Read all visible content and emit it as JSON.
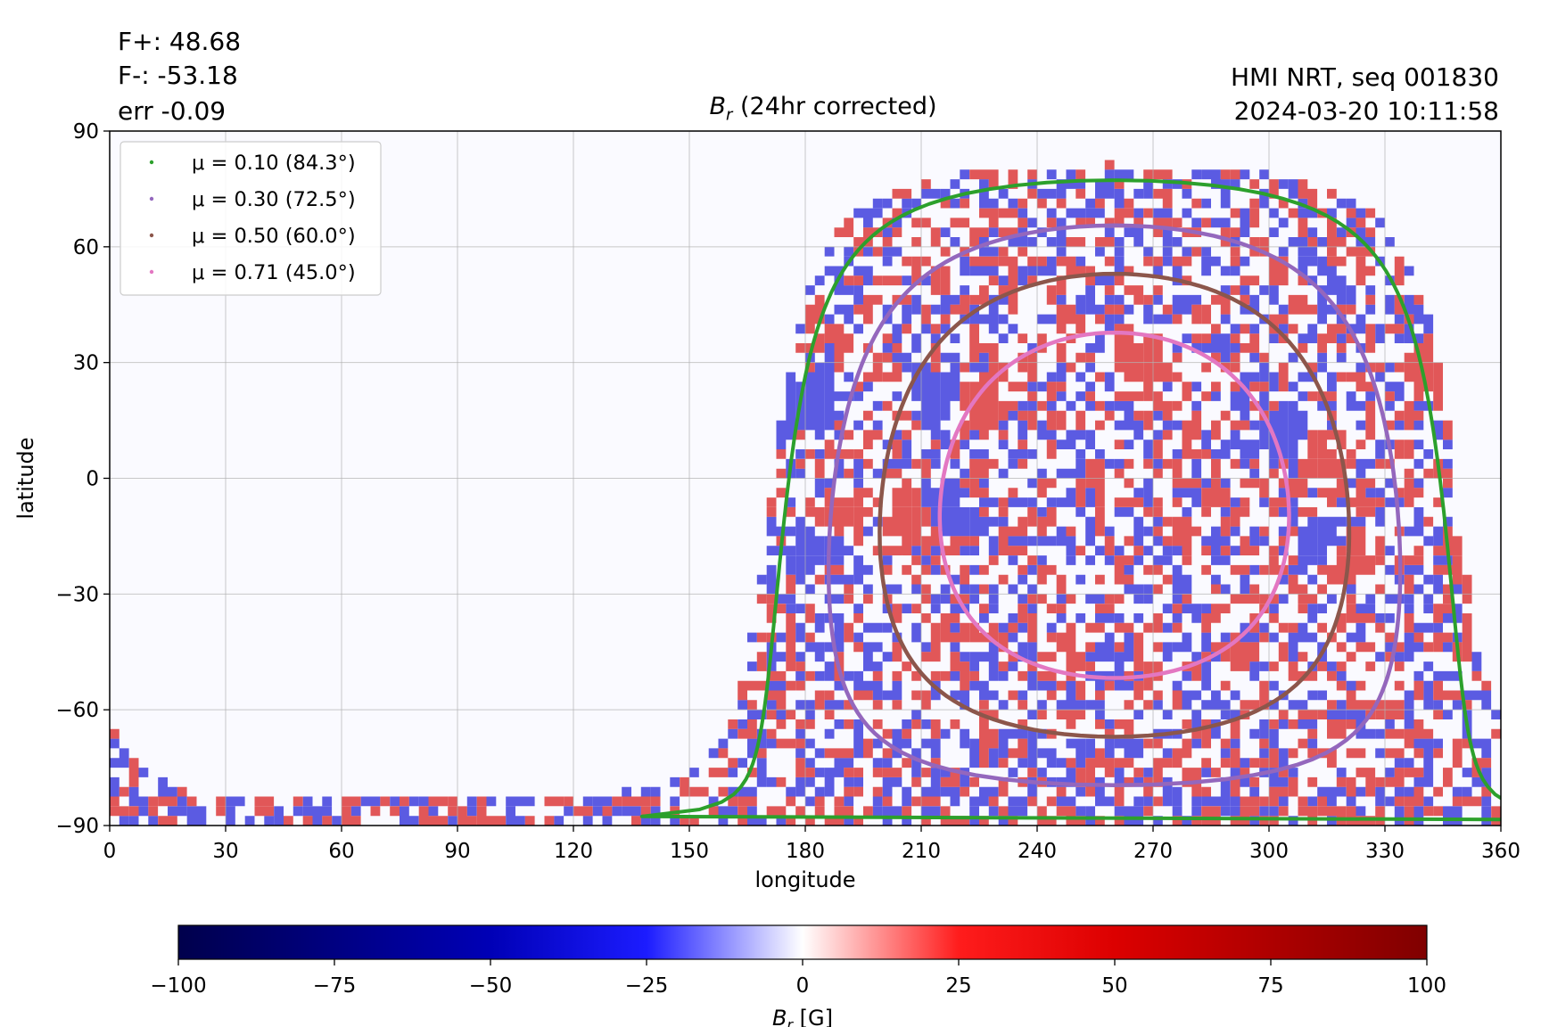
{
  "header": {
    "flux_pos": "F+: 48.68",
    "flux_neg": "F-: -53.18",
    "error": "err -0.09",
    "title_symbol": "B",
    "title_sub": "r",
    "title_rest": " (24hr corrected)",
    "source": "HMI NRT, seq 001830",
    "timestamp": "2024-03-20 10:11:58"
  },
  "chart_data": {
    "type": "heatmap",
    "xlabel": "longitude",
    "ylabel": "latitude",
    "xlim": [
      0,
      360
    ],
    "ylim": [
      -90,
      90
    ],
    "xticks": [
      0,
      30,
      60,
      90,
      120,
      150,
      180,
      210,
      240,
      270,
      300,
      330,
      360
    ],
    "yticks": [
      90,
      60,
      30,
      0,
      -30,
      -60,
      -90
    ],
    "ytick_labels": [
      "90",
      "60",
      "30",
      "0",
      "−30",
      "−60",
      "−90"
    ],
    "grid": true,
    "legend_position": "top-left",
    "disk_center_longitude": 260,
    "disk_center_latitude": -7,
    "series": [
      {
        "name": "μ = 0.10 (84.3°)",
        "mu": 0.1,
        "angle_deg": 84.3,
        "color": "#2ca02c"
      },
      {
        "name": "μ = 0.30 (72.5°)",
        "mu": 0.3,
        "angle_deg": 72.5,
        "color": "#9467bd"
      },
      {
        "name": "μ = 0.50 (60.0°)",
        "mu": 0.5,
        "angle_deg": 60.0,
        "color": "#8c564b"
      },
      {
        "name": "μ = 0.71 (45.0°)",
        "mu": 0.71,
        "angle_deg": 45.0,
        "color": "#e377c2"
      }
    ],
    "active_regions": [
      {
        "lon": 213,
        "lat": 20,
        "polarity": -1
      },
      {
        "lon": 225,
        "lat": 18,
        "polarity": 1
      },
      {
        "lon": 182,
        "lat": 19,
        "polarity": -1
      },
      {
        "lon": 185,
        "lat": -13,
        "polarity": 1
      },
      {
        "lon": 182,
        "lat": -17,
        "polarity": -1
      },
      {
        "lon": 207,
        "lat": -13,
        "polarity": 1
      },
      {
        "lon": 216,
        "lat": -10,
        "polarity": -1
      },
      {
        "lon": 313,
        "lat": -18,
        "polarity": -1
      },
      {
        "lon": 318,
        "lat": -22,
        "polarity": 1
      },
      {
        "lon": 304,
        "lat": 10,
        "polarity": -1
      },
      {
        "lon": 313,
        "lat": 3,
        "polarity": 1
      },
      {
        "lon": 340,
        "lat": 27,
        "polarity": 1
      },
      {
        "lon": 265,
        "lat": 30,
        "polarity": 1
      }
    ],
    "colorbar": {
      "label_symbol": "B",
      "label_sub": "r",
      "label_unit": " [G]",
      "range": [
        -100,
        100
      ],
      "ticks": [
        -100,
        -75,
        -50,
        -25,
        0,
        25,
        50,
        75,
        100
      ],
      "tick_labels": [
        "−100",
        "−75",
        "−50",
        "−25",
        "0",
        "25",
        "50",
        "75",
        "100"
      ],
      "colormap": "seismic"
    }
  }
}
